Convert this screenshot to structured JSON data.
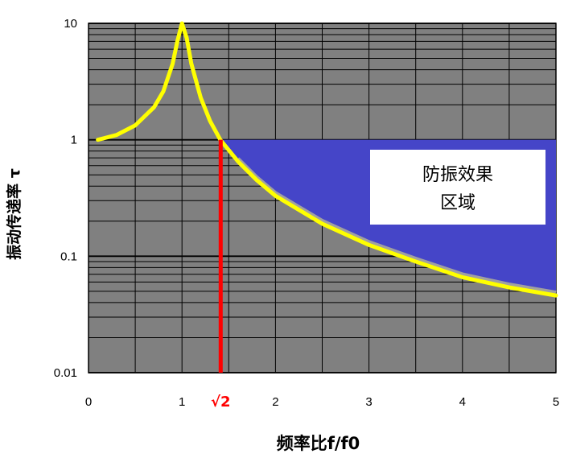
{
  "chart_data": {
    "type": "line",
    "xlabel": "频率比f/f0",
    "ylabel": "振动传递率 τ",
    "y_scale": "log",
    "xlim": [
      0,
      5
    ],
    "ylim": [
      0.01,
      10
    ],
    "x_ticks": [
      "0",
      "1",
      "2",
      "3",
      "4",
      "5"
    ],
    "y_ticks": [
      "0.01",
      "0.1",
      "1",
      "10"
    ],
    "grid": true,
    "series": [
      {
        "x": [
          0.1,
          0.3,
          0.5,
          0.7,
          0.8,
          0.9,
          0.95,
          1.0,
          1.05,
          1.1,
          1.2,
          1.3,
          1.41,
          1.6,
          1.8,
          2.0,
          2.5,
          3.0,
          3.5,
          4.0,
          4.5,
          5.0
        ],
        "y": [
          1.0,
          1.1,
          1.33,
          1.9,
          2.6,
          4.5,
          7.0,
          10.0,
          7.5,
          4.5,
          2.3,
          1.45,
          1.0,
          0.65,
          0.45,
          0.33,
          0.19,
          0.125,
          0.09,
          0.066,
          0.054,
          0.046
        ]
      }
    ],
    "annotations": {
      "sqrt2_label": "√2",
      "sqrt2_x": 1.414,
      "region_label_line1": "防振效果",
      "region_label_line2": "区域"
    },
    "colors": {
      "plot_background": "#808080",
      "grid": "#000000",
      "curve": "#ffff00",
      "region": "#4545c8",
      "marker_line": "#ff0000",
      "label_box": "#ffffff"
    }
  }
}
